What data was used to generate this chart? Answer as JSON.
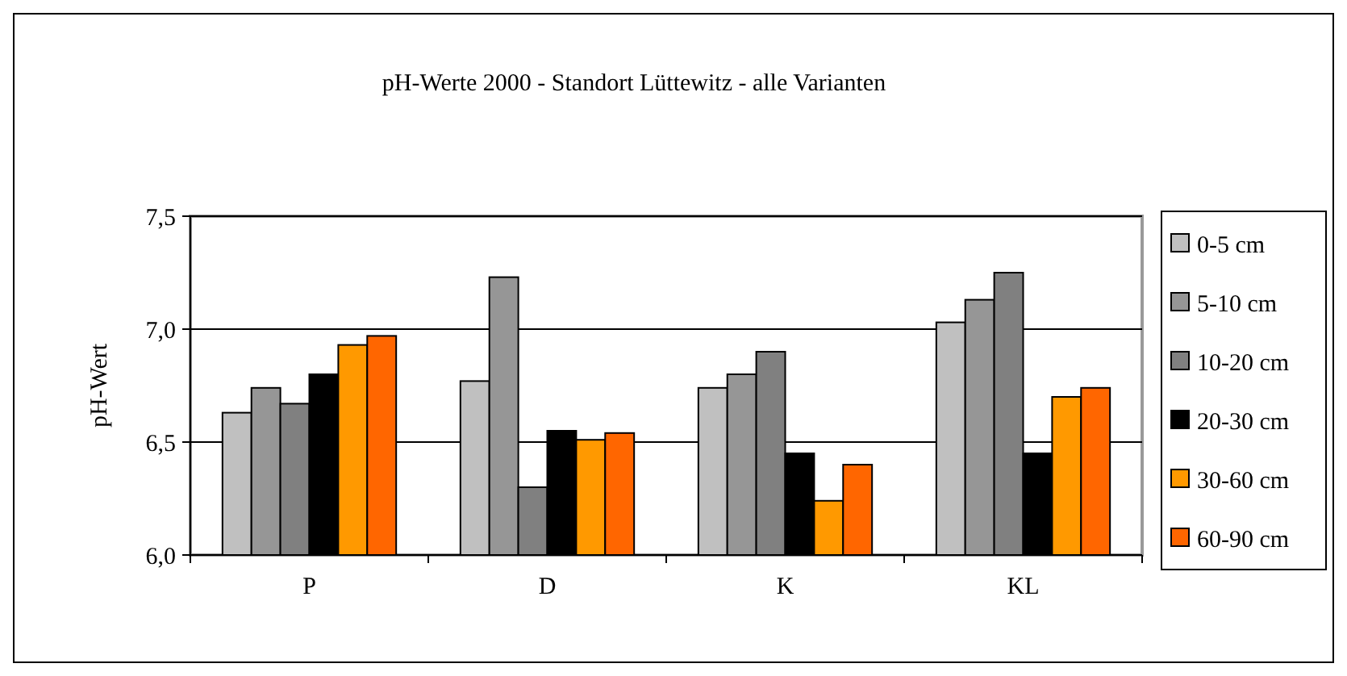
{
  "chart_data": {
    "type": "bar",
    "title": "pH-Werte 2000 - Standort Lüttewitz - alle Varianten",
    "ylabel": "pH-Wert",
    "categories": [
      "P",
      "D",
      "K",
      "KL"
    ],
    "series": [
      {
        "name": "0-5 cm",
        "color": "#c0c0c0",
        "values": [
          6.63,
          6.77,
          6.74,
          7.03
        ]
      },
      {
        "name": "5-10 cm",
        "color": "#969696",
        "values": [
          6.74,
          7.23,
          6.8,
          7.13
        ]
      },
      {
        "name": "10-20 cm",
        "color": "#808080",
        "values": [
          6.67,
          6.3,
          6.9,
          7.25
        ]
      },
      {
        "name": "20-30 cm",
        "color": "#000000",
        "values": [
          6.8,
          6.55,
          6.45,
          6.45
        ]
      },
      {
        "name": "30-60 cm",
        "color": "#ff9900",
        "values": [
          6.93,
          6.51,
          6.24,
          6.7
        ]
      },
      {
        "name": "60-90 cm",
        "color": "#ff6600",
        "values": [
          6.97,
          6.54,
          6.4,
          6.74
        ]
      }
    ],
    "ylim": [
      6.0,
      7.5
    ],
    "yticks": [
      {
        "value": 6.0,
        "label": "6,0"
      },
      {
        "value": 6.5,
        "label": "6,5"
      },
      {
        "value": 7.0,
        "label": "7,0"
      },
      {
        "value": 7.5,
        "label": "7,5"
      }
    ],
    "grid": "y",
    "legend": "right"
  }
}
